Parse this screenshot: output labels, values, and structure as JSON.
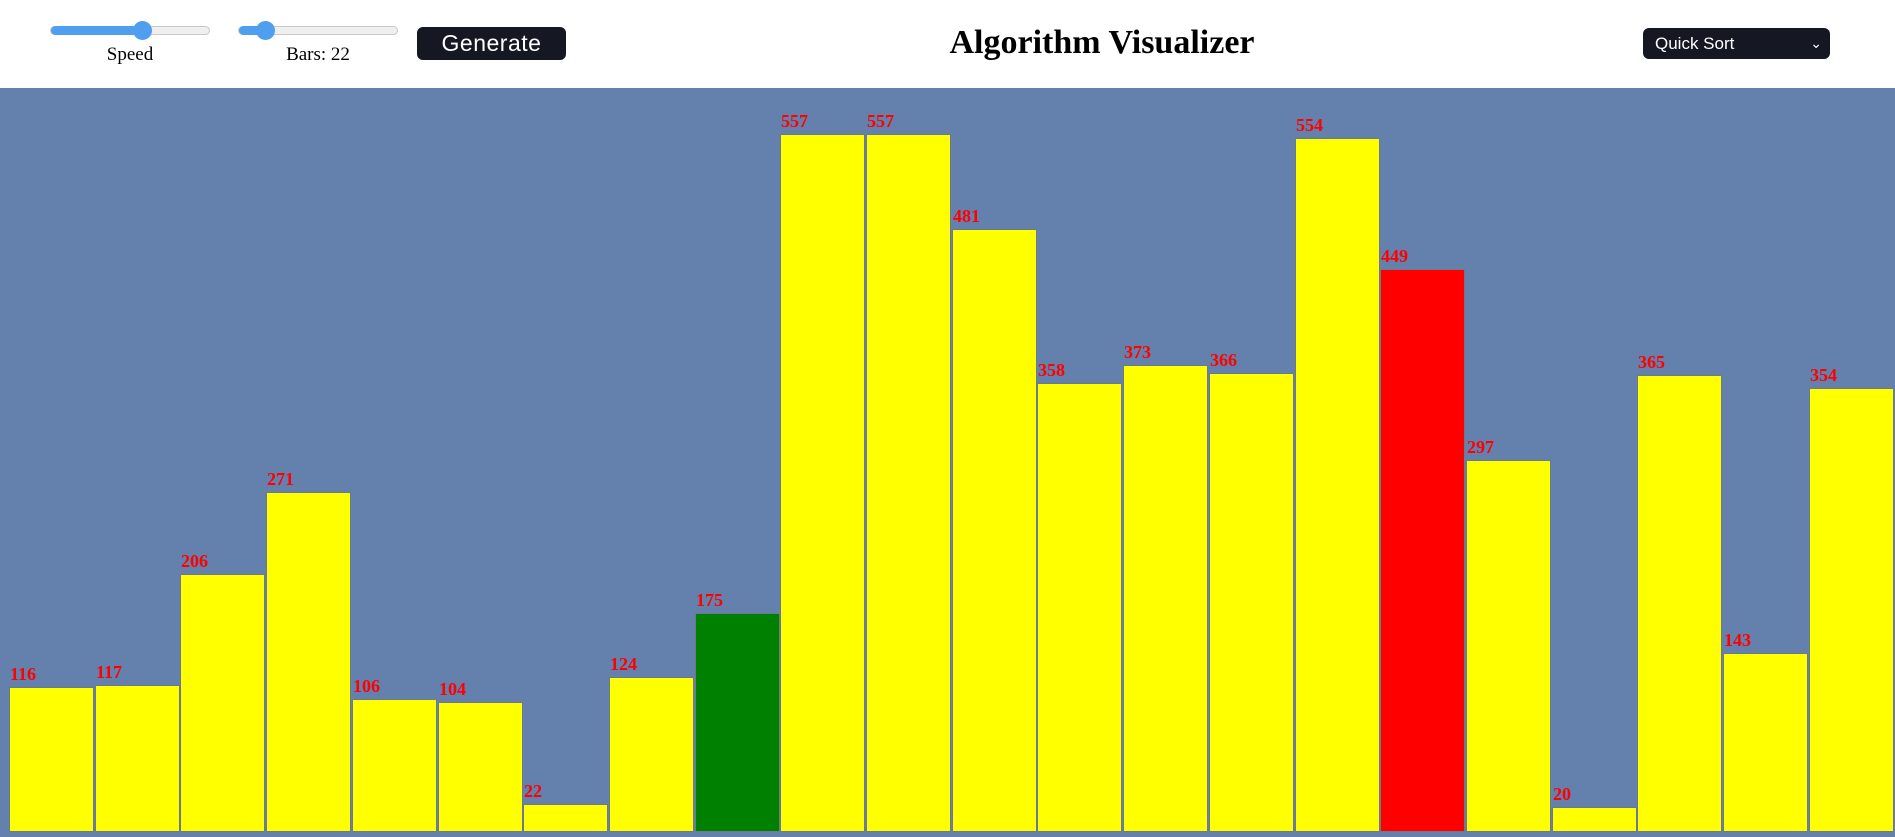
{
  "header": {
    "speed": {
      "label": "Speed",
      "value_fraction": 0.57
    },
    "bars": {
      "label": "Bars: 22",
      "value_fraction": 0.16
    },
    "generate_label": "Generate",
    "title": "Algorithm Visualizer",
    "algorithm": {
      "selected": "Quick Sort"
    }
  },
  "colors": {
    "canvas_background": "#6381ac",
    "bar_default": "#ffff00",
    "bar_compare": "#ff0000",
    "bar_pivot": "#008000",
    "value_label": "#ff0000",
    "slider_accent": "#4f9ef0",
    "button_dark": "#151823"
  },
  "chart_data": {
    "type": "bar",
    "values": [
      116,
      117,
      206,
      271,
      106,
      104,
      22,
      124,
      175,
      557,
      557,
      481,
      358,
      373,
      366,
      554,
      449,
      297,
      20,
      365,
      143,
      354
    ],
    "states": [
      "default",
      "default",
      "default",
      "default",
      "default",
      "default",
      "default",
      "default",
      "pivot",
      "default",
      "default",
      "default",
      "default",
      "default",
      "default",
      "default",
      "compare",
      "default",
      "default",
      "default",
      "default",
      "default"
    ]
  }
}
